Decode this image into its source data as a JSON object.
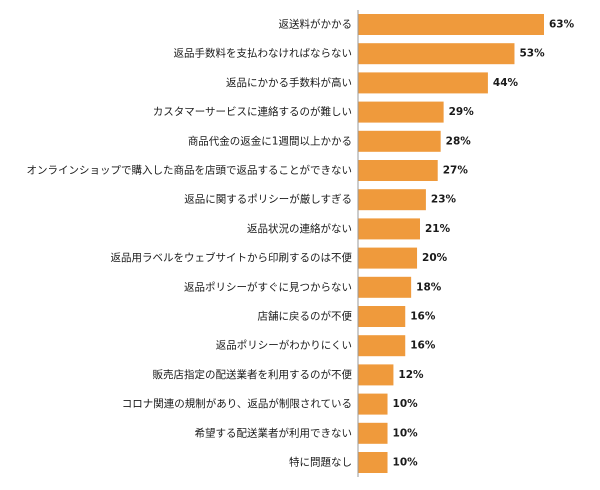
{
  "chart_data": {
    "type": "bar",
    "orientation": "horizontal",
    "categories": [
      "返送料がかかる",
      "返品手数料を支払わなければならない",
      "返品にかかる手数料が高い",
      "カスタマーサービスに連絡するのが難しい",
      "商品代金の返金に1週間以上かかる",
      "オンラインショップで購入した商品を店頭で返品することができない",
      "返品に関するポリシーが厳しすぎる",
      "返品状況の連絡がない",
      "返品用ラベルをウェブサイトから印刷するのは不便",
      "返品ポリシーがすぐに見つからない",
      "店舗に戻るのが不便",
      "返品ポリシーがわかりにくい",
      "販売店指定の配送業者を利用するのが不便",
      "コロナ関連の規制があり、返品が制限されている",
      "希望する配送業者が利用できない",
      "特に問題なし"
    ],
    "values": [
      63,
      53,
      44,
      29,
      28,
      27,
      23,
      21,
      20,
      18,
      16,
      16,
      12,
      10,
      10,
      10
    ],
    "value_labels": [
      "63%",
      "53%",
      "44%",
      "29%",
      "28%",
      "27%",
      "23%",
      "21%",
      "20%",
      "18%",
      "16%",
      "16%",
      "12%",
      "10%",
      "10%",
      "10%"
    ],
    "xlim": [
      0,
      63
    ],
    "grid": false,
    "legend": "none",
    "bar_color": "#ef9a3c",
    "axis_color": "#9a9a9a",
    "title": "",
    "xlabel": "",
    "ylabel": ""
  }
}
